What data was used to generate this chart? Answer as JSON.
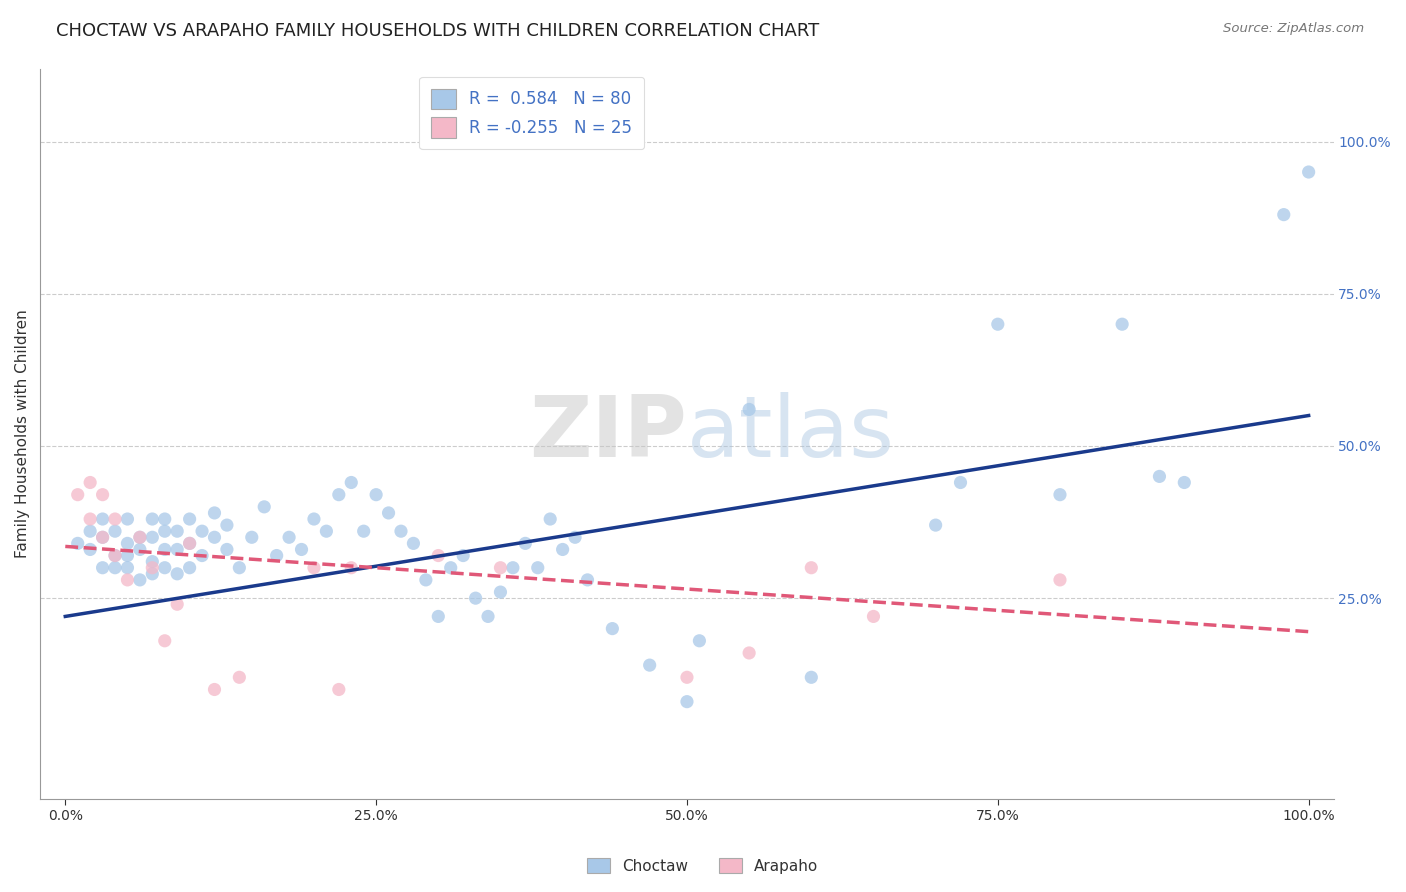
{
  "title": "CHOCTAW VS ARAPAHO FAMILY HOUSEHOLDS WITH CHILDREN CORRELATION CHART",
  "source": "Source: ZipAtlas.com",
  "ylabel": "Family Households with Children",
  "choctaw_color": "#a8c8e8",
  "choctaw_line_color": "#1a3a8c",
  "arapaho_color": "#f4b8c8",
  "arapaho_line_color": "#e05878",
  "background_color": "#ffffff",
  "grid_color": "#cccccc",
  "legend_R_choctaw": "R =  0.584",
  "legend_N_choctaw": "N = 80",
  "legend_R_arapaho": "R = -0.255",
  "legend_N_arapaho": "N = 25",
  "watermark_zip": "ZIP",
  "watermark_atlas": "atlas",
  "xlim": [
    -0.02,
    1.02
  ],
  "ylim": [
    -0.08,
    1.12
  ],
  "xtick_labels": [
    "0.0%",
    "25.0%",
    "50.0%",
    "75.0%",
    "100.0%"
  ],
  "xtick_vals": [
    0.0,
    0.25,
    0.5,
    0.75,
    1.0
  ],
  "ytick_labels": [
    "25.0%",
    "50.0%",
    "75.0%",
    "100.0%"
  ],
  "ytick_vals": [
    0.25,
    0.5,
    0.75,
    1.0
  ],
  "choctaw_x": [
    0.01,
    0.02,
    0.02,
    0.03,
    0.03,
    0.03,
    0.04,
    0.04,
    0.04,
    0.05,
    0.05,
    0.05,
    0.05,
    0.06,
    0.06,
    0.06,
    0.07,
    0.07,
    0.07,
    0.07,
    0.08,
    0.08,
    0.08,
    0.08,
    0.09,
    0.09,
    0.09,
    0.1,
    0.1,
    0.1,
    0.11,
    0.11,
    0.12,
    0.12,
    0.13,
    0.13,
    0.14,
    0.15,
    0.16,
    0.17,
    0.18,
    0.19,
    0.2,
    0.21,
    0.22,
    0.23,
    0.24,
    0.25,
    0.26,
    0.27,
    0.28,
    0.29,
    0.3,
    0.31,
    0.32,
    0.33,
    0.34,
    0.35,
    0.36,
    0.37,
    0.38,
    0.39,
    0.4,
    0.41,
    0.42,
    0.44,
    0.47,
    0.5,
    0.51,
    0.55,
    0.6,
    0.7,
    0.72,
    0.75,
    0.8,
    0.85,
    0.88,
    0.9,
    0.98,
    1.0
  ],
  "choctaw_y": [
    0.34,
    0.33,
    0.36,
    0.35,
    0.3,
    0.38,
    0.32,
    0.36,
    0.3,
    0.34,
    0.32,
    0.38,
    0.3,
    0.35,
    0.28,
    0.33,
    0.31,
    0.35,
    0.29,
    0.38,
    0.33,
    0.36,
    0.3,
    0.38,
    0.33,
    0.36,
    0.29,
    0.3,
    0.34,
    0.38,
    0.32,
    0.36,
    0.35,
    0.39,
    0.33,
    0.37,
    0.3,
    0.35,
    0.4,
    0.32,
    0.35,
    0.33,
    0.38,
    0.36,
    0.42,
    0.44,
    0.36,
    0.42,
    0.39,
    0.36,
    0.34,
    0.28,
    0.22,
    0.3,
    0.32,
    0.25,
    0.22,
    0.26,
    0.3,
    0.34,
    0.3,
    0.38,
    0.33,
    0.35,
    0.28,
    0.2,
    0.14,
    0.08,
    0.18,
    0.56,
    0.12,
    0.37,
    0.44,
    0.7,
    0.42,
    0.7,
    0.45,
    0.44,
    0.88,
    0.95
  ],
  "arapaho_x": [
    0.01,
    0.02,
    0.02,
    0.03,
    0.03,
    0.04,
    0.04,
    0.05,
    0.06,
    0.07,
    0.08,
    0.09,
    0.1,
    0.12,
    0.14,
    0.2,
    0.22,
    0.23,
    0.3,
    0.35,
    0.5,
    0.55,
    0.6,
    0.65,
    0.8
  ],
  "arapaho_y": [
    0.42,
    0.38,
    0.44,
    0.35,
    0.42,
    0.32,
    0.38,
    0.28,
    0.35,
    0.3,
    0.18,
    0.24,
    0.34,
    0.1,
    0.12,
    0.3,
    0.1,
    0.3,
    0.32,
    0.3,
    0.12,
    0.16,
    0.3,
    0.22,
    0.28
  ],
  "choctaw_trendline_x": [
    0.0,
    1.0
  ],
  "choctaw_trendline_y": [
    0.22,
    0.55
  ],
  "arapaho_trendline_x": [
    0.0,
    1.0
  ],
  "arapaho_trendline_y": [
    0.335,
    0.195
  ],
  "title_fontsize": 13,
  "axis_label_fontsize": 11,
  "tick_fontsize": 10,
  "marker_size": 90,
  "right_tick_color": "#4472c4"
}
